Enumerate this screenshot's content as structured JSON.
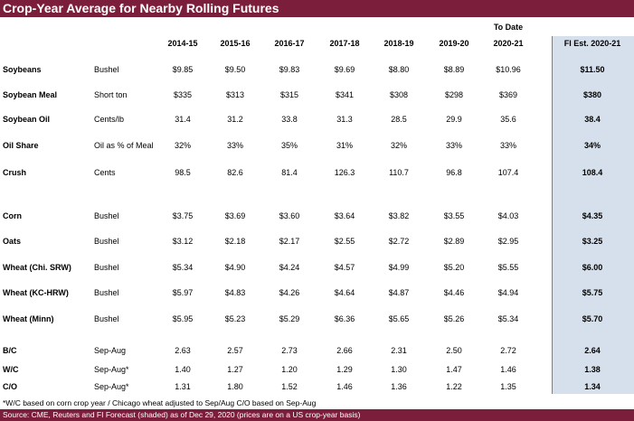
{
  "title": "Crop-Year Average for Nearby Rolling Futures",
  "to_date_label": "To Date",
  "columns": [
    "2014-15",
    "2015-16",
    "2016-17",
    "2017-18",
    "2018-19",
    "2019-20",
    "2020-21"
  ],
  "forecast_column": "FI Est. 2020-21",
  "rows": [
    {
      "label": "Soybeans",
      "unit": "Bushel",
      "values": [
        "$9.85",
        "$9.50",
        "$9.83",
        "$9.69",
        "$8.80",
        "$8.89",
        "$10.96"
      ],
      "forecast": "$11.50"
    },
    {
      "label": "Soybean Meal",
      "unit": "Short ton",
      "values": [
        "$335",
        "$313",
        "$315",
        "$341",
        "$308",
        "$298",
        "$369"
      ],
      "forecast": "$380"
    },
    {
      "label": "Soybean Oil",
      "unit": "Cents/lb",
      "values": [
        "31.4",
        "31.2",
        "33.8",
        "31.3",
        "28.5",
        "29.9",
        "35.6"
      ],
      "forecast": "38.4"
    },
    {
      "label": "Oil Share",
      "unit": "Oil as % of Meal",
      "values": [
        "32%",
        "33%",
        "35%",
        "31%",
        "32%",
        "33%",
        "33%"
      ],
      "forecast": "34%"
    },
    {
      "label": "Crush",
      "unit": "Cents",
      "values": [
        "98.5",
        "82.6",
        "81.4",
        "126.3",
        "110.7",
        "96.8",
        "107.4"
      ],
      "forecast": "108.4"
    },
    {
      "label": "Corn",
      "unit": "Bushel",
      "values": [
        "$3.75",
        "$3.69",
        "$3.60",
        "$3.64",
        "$3.82",
        "$3.55",
        "$4.03"
      ],
      "forecast": "$4.35"
    },
    {
      "label": "Oats",
      "unit": "Bushel",
      "values": [
        "$3.12",
        "$2.18",
        "$2.17",
        "$2.55",
        "$2.72",
        "$2.89",
        "$2.95"
      ],
      "forecast": "$3.25"
    },
    {
      "label": "Wheat (Chi. SRW)",
      "unit": "Bushel",
      "values": [
        "$5.34",
        "$4.90",
        "$4.24",
        "$4.57",
        "$4.99",
        "$5.20",
        "$5.55"
      ],
      "forecast": "$6.00"
    },
    {
      "label": "Wheat (KC-HRW)",
      "unit": "Bushel",
      "values": [
        "$5.97",
        "$4.83",
        "$4.26",
        "$4.64",
        "$4.87",
        "$4.46",
        "$4.94"
      ],
      "forecast": "$5.75"
    },
    {
      "label": "Wheat (Minn)",
      "unit": "Bushel",
      "values": [
        "$5.95",
        "$5.23",
        "$5.29",
        "$6.36",
        "$5.65",
        "$5.26",
        "$5.34"
      ],
      "forecast": "$5.70"
    },
    {
      "label": "B/C",
      "unit": "Sep-Aug",
      "values": [
        "2.63",
        "2.57",
        "2.73",
        "2.66",
        "2.31",
        "2.50",
        "2.72"
      ],
      "forecast": "2.64"
    },
    {
      "label": "W/C",
      "unit": "Sep-Aug*",
      "values": [
        "1.40",
        "1.27",
        "1.20",
        "1.29",
        "1.30",
        "1.47",
        "1.46"
      ],
      "forecast": "1.38"
    },
    {
      "label": "C/O",
      "unit": "Sep-Aug*",
      "values": [
        "1.31",
        "1.80",
        "1.52",
        "1.46",
        "1.36",
        "1.22",
        "1.35"
      ],
      "forecast": "1.34"
    }
  ],
  "footnote": "*W/C based on corn crop year / Chicago wheat adjusted to Sep/Aug      C/O based on Sep-Aug",
  "source": "Source: CME, Reuters and FI   Forecast (shaded) as of Dec 29, 2020  (prices are on a US crop-year basis)",
  "colors": {
    "title_bar": "#7b1e3c",
    "forecast_shade": "#d6e0ec"
  }
}
